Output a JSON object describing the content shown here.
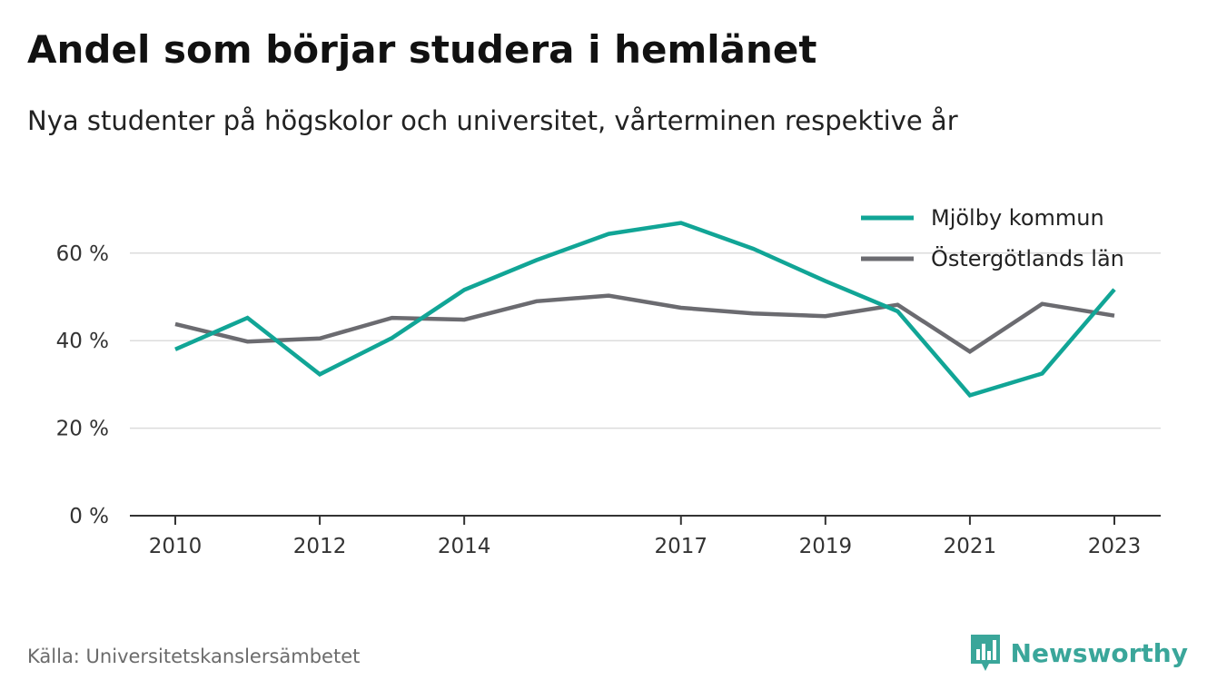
{
  "title": "Andel som börjar studera i hemlänet",
  "subtitle": "Nya studenter på högskolor och universitet, vårterminen respektive år",
  "source": "Källa: Universitetskanslersämbetet",
  "brand": {
    "name": "Newsworthy",
    "icon": "newsworthy-chart-icon",
    "color": "#3aa69a"
  },
  "chart_data": {
    "type": "line",
    "x": [
      2010,
      2011,
      2012,
      2013,
      2014,
      2015,
      2016,
      2017,
      2018,
      2019,
      2020,
      2021,
      2022,
      2023
    ],
    "x_ticks": [
      2010,
      2012,
      2014,
      2017,
      2019,
      2021,
      2023
    ],
    "x_tick_labels": [
      "2010",
      "2012",
      "2014",
      "2017",
      "2019",
      "2021",
      "2023"
    ],
    "y_ticks": [
      0,
      20,
      40,
      60
    ],
    "y_tick_labels": [
      "0 %",
      "20 %",
      "40 %",
      "60 %"
    ],
    "ylim": [
      0,
      70
    ],
    "grid": true,
    "legend_position": "top-right",
    "series": [
      {
        "name": "Mjölby kommun",
        "color": "#11a596",
        "values": [
          38.0,
          45.2,
          32.3,
          40.6,
          51.6,
          58.4,
          64.4,
          66.9,
          61.0,
          53.6,
          46.7,
          27.5,
          32.5,
          51.7
        ]
      },
      {
        "name": "Östergötlands län",
        "color": "#6b6b70",
        "values": [
          43.8,
          39.8,
          40.5,
          45.2,
          44.8,
          49.0,
          50.3,
          47.5,
          46.2,
          45.6,
          48.2,
          37.5,
          48.4,
          45.7
        ]
      }
    ]
  }
}
